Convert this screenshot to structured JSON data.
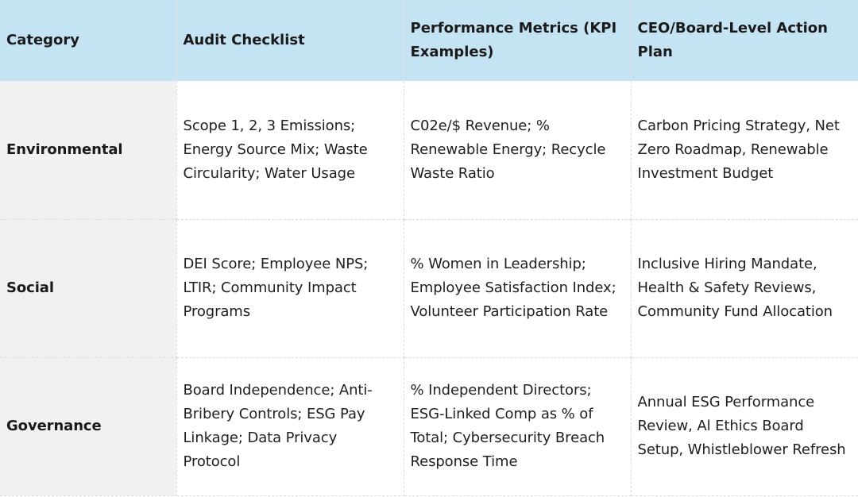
{
  "headers": {
    "category": "Category",
    "audit": "Audit Checklist",
    "metrics": "Performance Metrics (KPI Examples)",
    "action": "CEO/Board-Level Action Plan"
  },
  "rows": [
    {
      "category": "Environmental",
      "audit": "Scope 1, 2, 3 Emissions; Energy Source Mix; Waste Circularity; Water Usage",
      "metrics": "C02e/$ Revenue; % Renewable Energy; Recycle Waste Ratio",
      "action": "Carbon Pricing Strategy, Net Zero Roadmap, Renewable Investment Budget"
    },
    {
      "category": "Social",
      "audit": "DEI Score; Employee NPS; LTIR; Community Impact Programs",
      "metrics": "% Women in Leadership; Employee Satisfaction Index; Volunteer Participation Rate",
      "action": "Inclusive Hiring Mandate, Health & Safety Reviews, Community Fund Allocation"
    },
    {
      "category": "Governance",
      "audit": "Board Independence; Anti-Bribery Controls; ESG Pay Linkage; Data Privacy Protocol",
      "metrics": "% Independent Directors; ESG-Linked Comp as % of Total; Cybersecurity Breach Response Time",
      "action": "Annual ESG Performance Review, Al Ethics Board Setup, Whistleblower Refresh"
    }
  ],
  "colors": {
    "header_bg": "#c5e4f3",
    "category_bg": "#f1f1f1",
    "cell_bg": "#ffffff"
  }
}
